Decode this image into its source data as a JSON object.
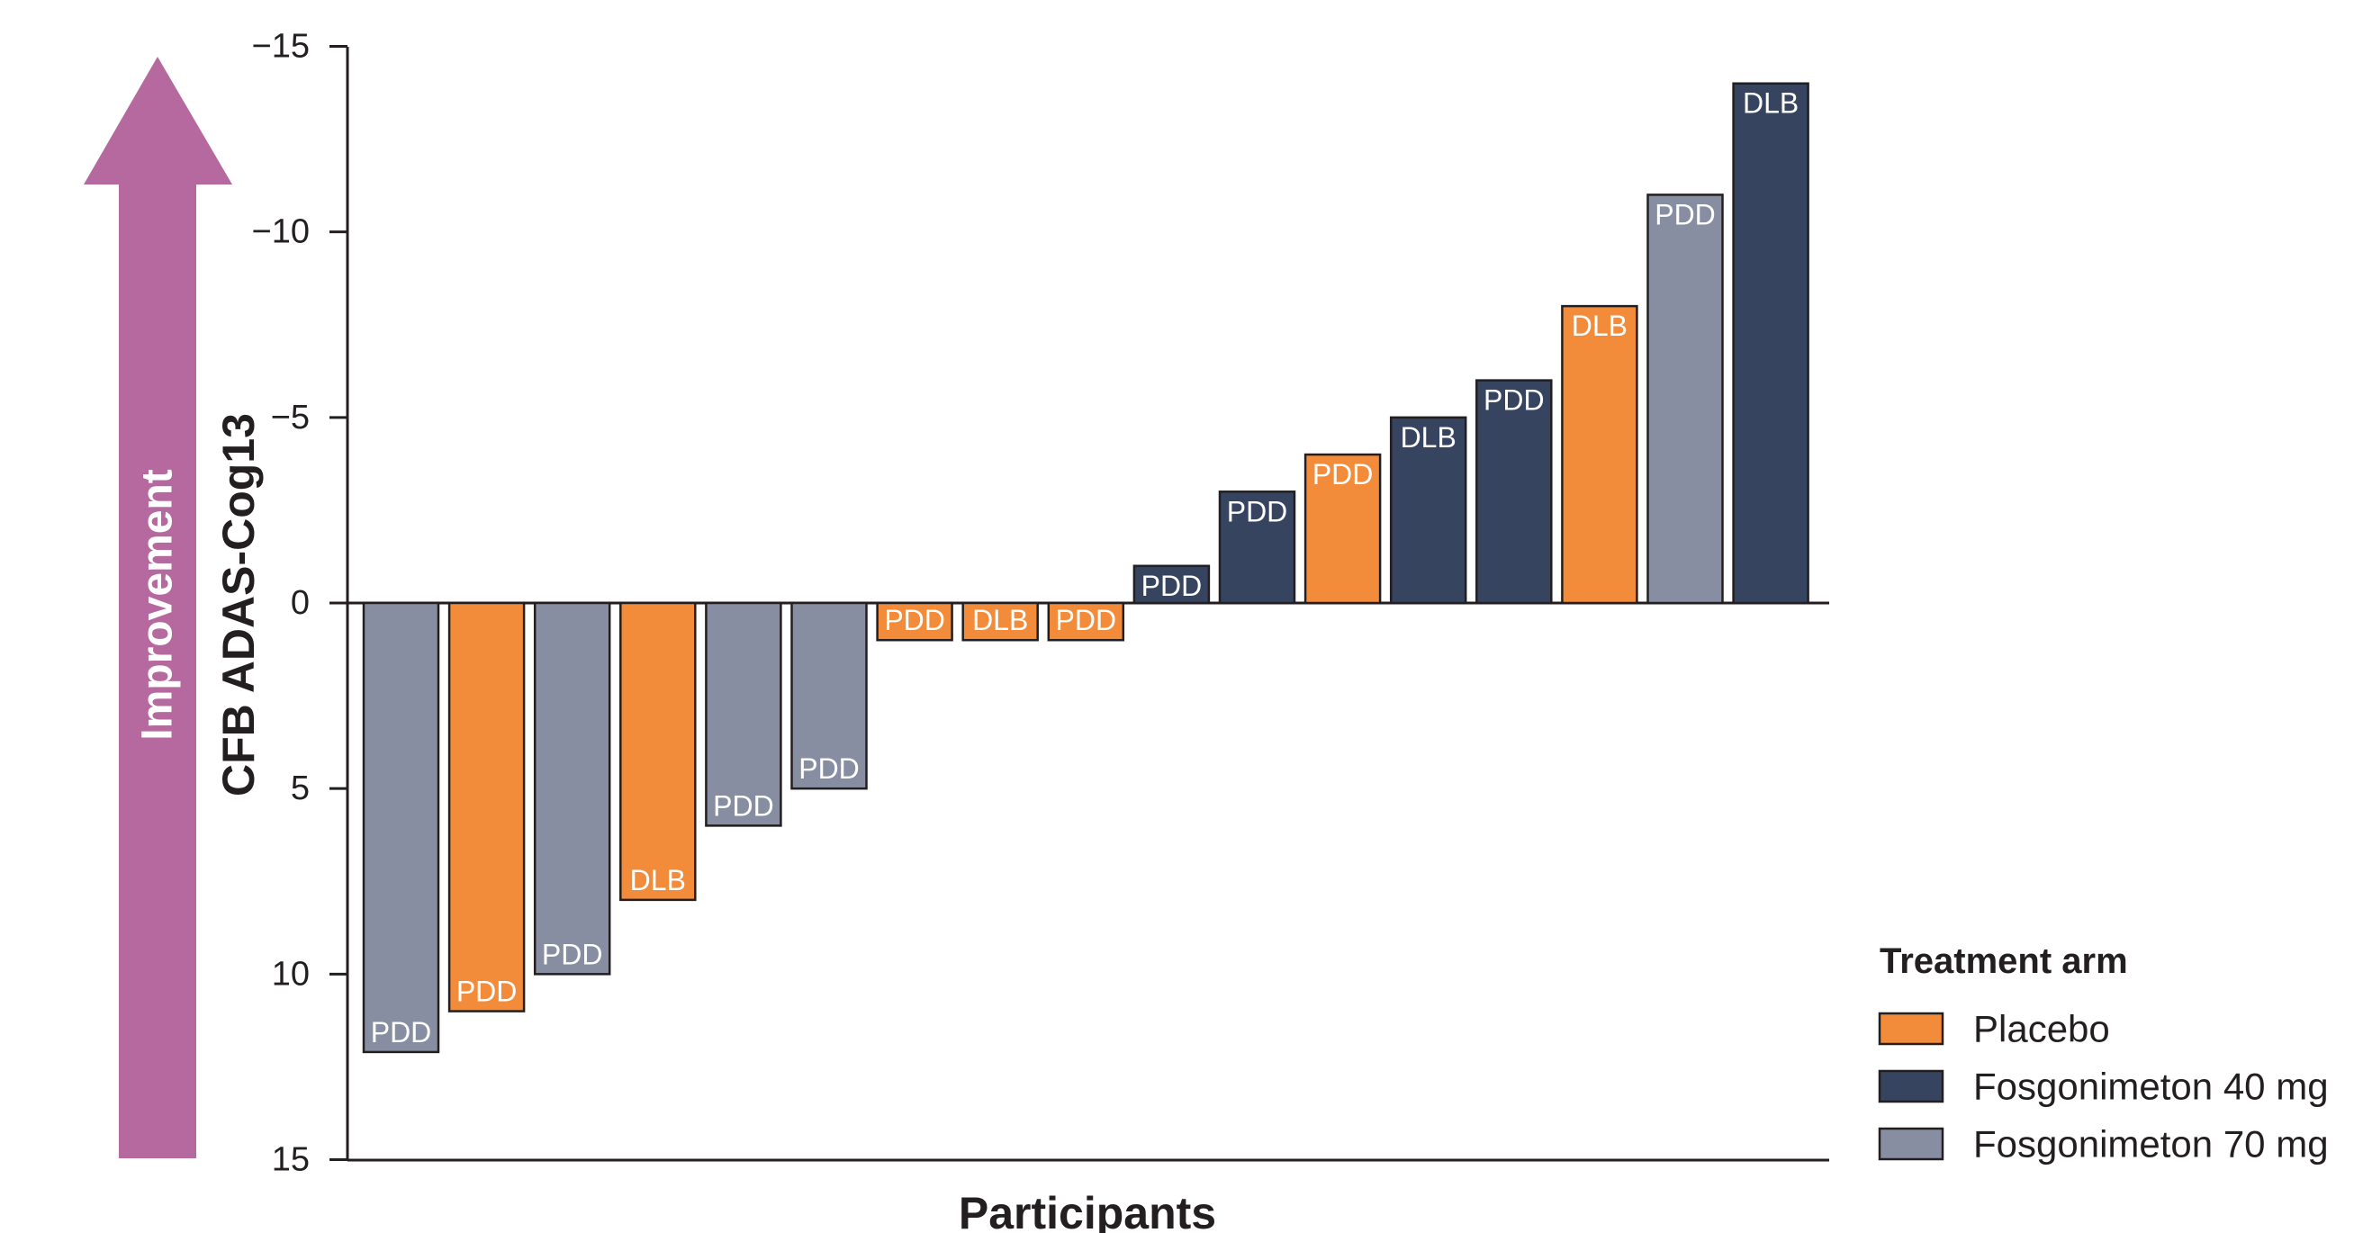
{
  "chart_data": {
    "type": "bar",
    "title": "",
    "xlabel": "Participants",
    "ylabel": "CFB ADAS-Cog13",
    "ylim": [
      15,
      -15
    ],
    "y_axis_inverted": true,
    "yticks": [
      -15,
      -10,
      -5,
      0,
      5,
      10,
      15
    ],
    "ytick_labels": [
      "−15",
      "−10",
      "−5",
      "0",
      "5",
      "10",
      "15"
    ],
    "improvement_arrow": {
      "label": "Improvement",
      "color": "#b5699f",
      "direction": "up"
    },
    "legend": {
      "title": "Treatment arm",
      "placement": "bottom-right",
      "entries": [
        {
          "arm": "placebo",
          "label": "Placebo",
          "color": "#f28c3a"
        },
        {
          "arm": "fosg40",
          "label": "Fosgonimeton 40 mg",
          "color": "#36445f"
        },
        {
          "arm": "fosg70",
          "label": "Fosgonimeton 70 mg",
          "color": "#888ea2"
        }
      ]
    },
    "bars": [
      {
        "value": 12.1,
        "arm": "fosg70",
        "label": "PDD"
      },
      {
        "value": 11.0,
        "arm": "placebo",
        "label": "PDD"
      },
      {
        "value": 10.0,
        "arm": "fosg70",
        "label": "PDD"
      },
      {
        "value": 8.0,
        "arm": "placebo",
        "label": "DLB"
      },
      {
        "value": 6.0,
        "arm": "fosg70",
        "label": "PDD"
      },
      {
        "value": 5.0,
        "arm": "fosg70",
        "label": "PDD"
      },
      {
        "value": 1.0,
        "arm": "placebo",
        "label": "PDD"
      },
      {
        "value": 1.0,
        "arm": "placebo",
        "label": "DLB"
      },
      {
        "value": 1.0,
        "arm": "placebo",
        "label": "PDD"
      },
      {
        "value": -1.0,
        "arm": "fosg40",
        "label": "PDD"
      },
      {
        "value": -3.0,
        "arm": "fosg40",
        "label": "PDD"
      },
      {
        "value": -4.0,
        "arm": "placebo",
        "label": "PDD"
      },
      {
        "value": -5.0,
        "arm": "fosg40",
        "label": "DLB"
      },
      {
        "value": -6.0,
        "arm": "fosg40",
        "label": "PDD"
      },
      {
        "value": -8.0,
        "arm": "placebo",
        "label": "DLB"
      },
      {
        "value": -11.0,
        "arm": "fosg70",
        "label": "PDD"
      },
      {
        "value": -14.0,
        "arm": "fosg40",
        "label": "DLB"
      }
    ]
  }
}
